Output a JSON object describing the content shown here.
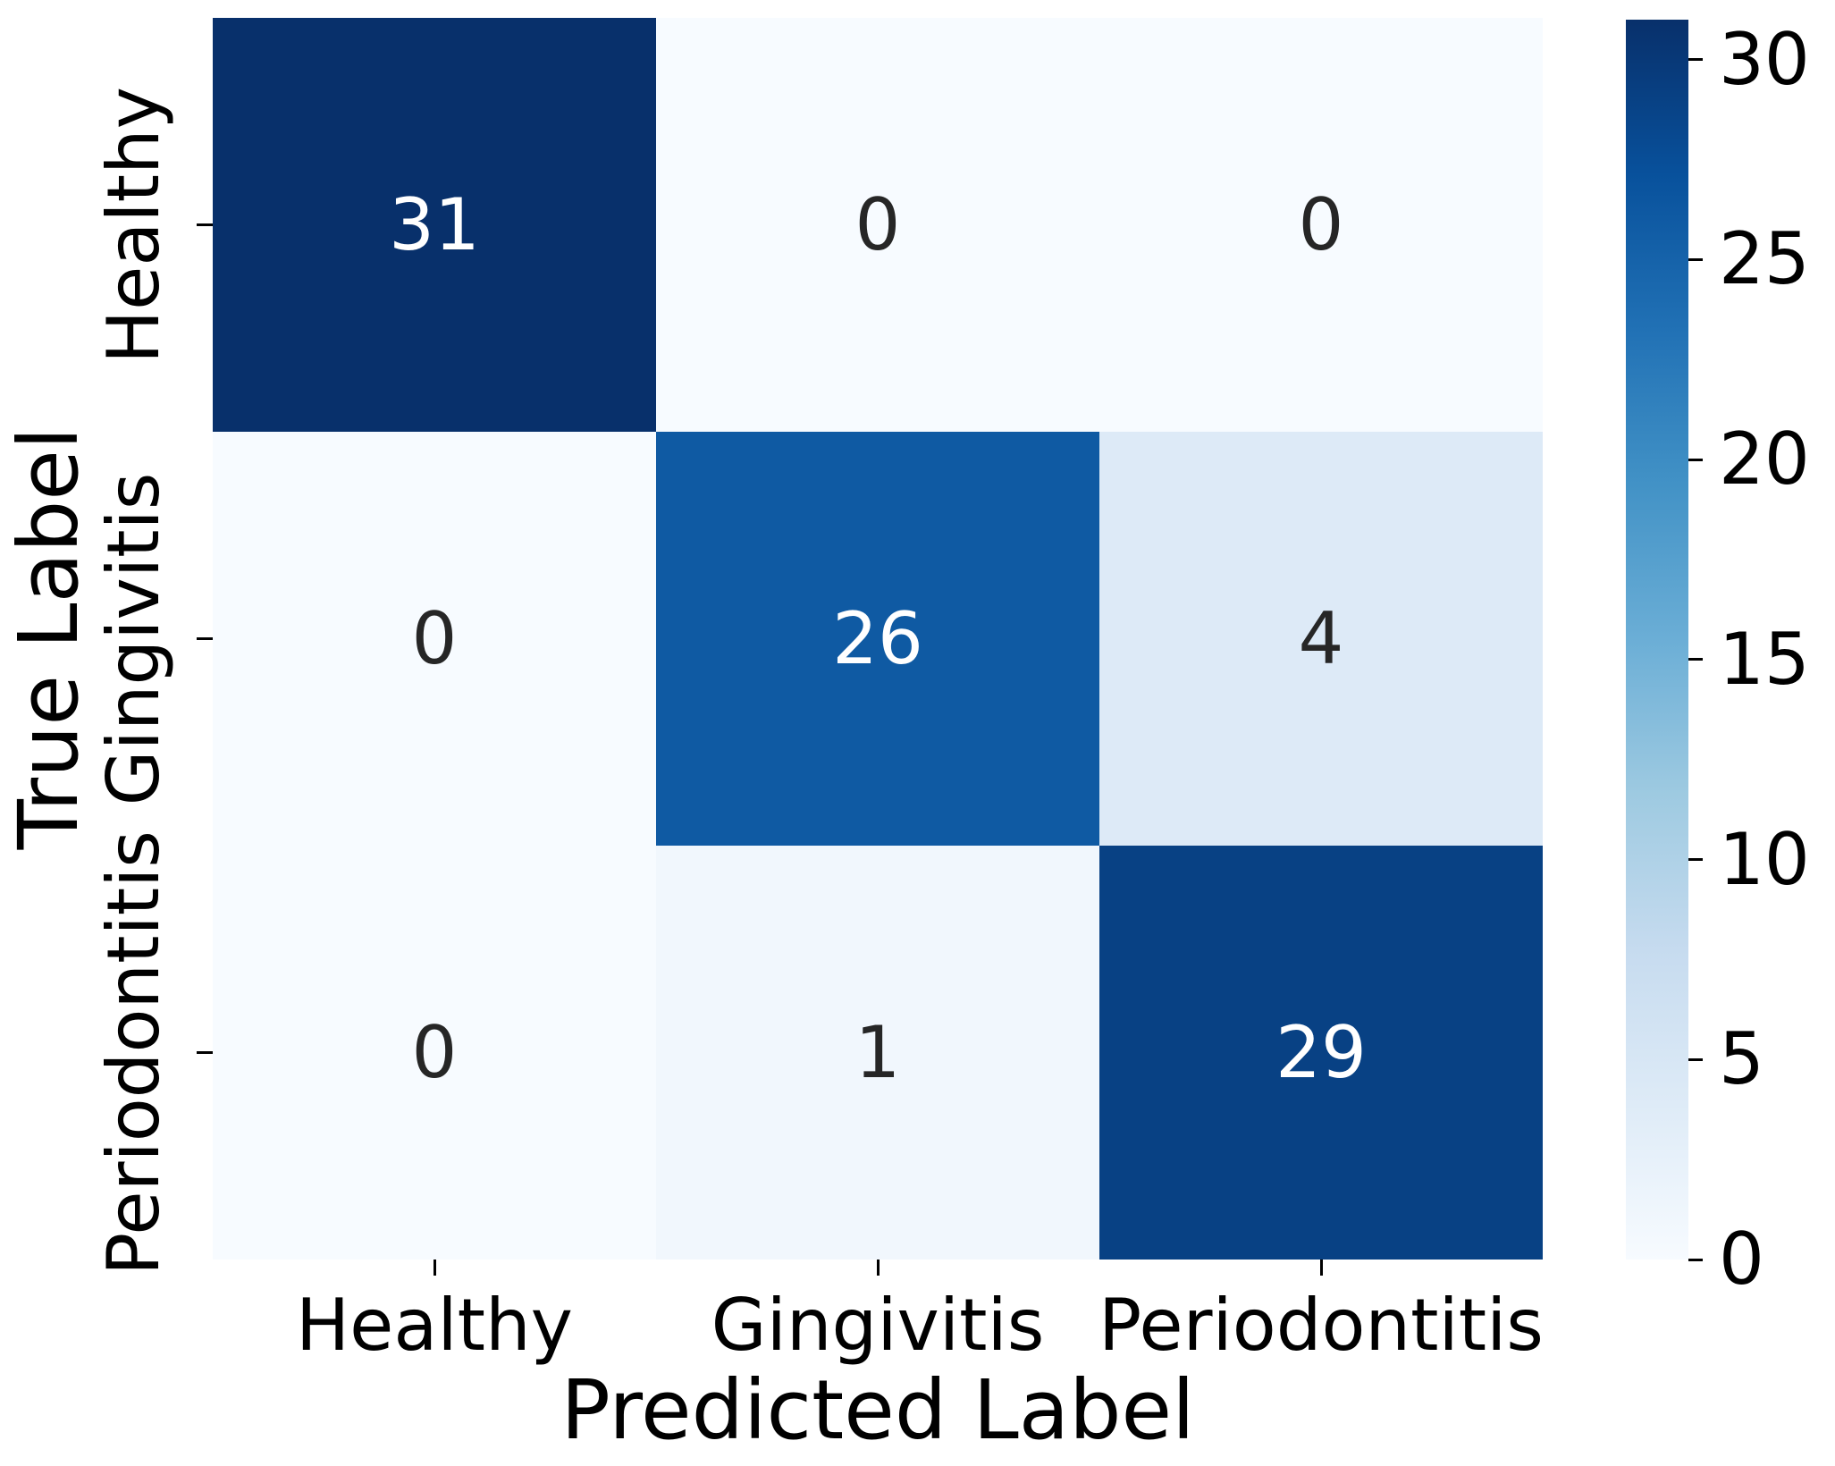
{
  "figure": {
    "background": "#ffffff"
  },
  "axes": {
    "xlabel": "Predicted Label",
    "ylabel": "True Label"
  },
  "chart_data": {
    "type": "heatmap",
    "title": "",
    "xlabel": "Predicted Label",
    "ylabel": "True Label",
    "x_categories": [
      "Healthy",
      "Gingivitis",
      "Periodontitis"
    ],
    "y_categories": [
      "Healthy",
      "Gingivitis",
      "Periodontitis"
    ],
    "matrix": [
      [
        31,
        0,
        0
      ],
      [
        0,
        26,
        4
      ],
      [
        0,
        1,
        29
      ]
    ],
    "vmin": 0,
    "vmax": 31,
    "colormap": "Blues",
    "legend_position": "right-colorbar",
    "grid": false,
    "colorbar_ticks": [
      0,
      5,
      10,
      15,
      20,
      25,
      30
    ],
    "cell_colors": [
      [
        "#08306b",
        "#f7fbff",
        "#f7fbff"
      ],
      [
        "#f7fbff",
        "#0f5aa3",
        "#ddeaf7"
      ],
      [
        "#f7fbff",
        "#f1f7fd",
        "#084184"
      ]
    ],
    "cell_text_colors": [
      [
        "#ffffff",
        "#262626",
        "#262626"
      ],
      [
        "#262626",
        "#ffffff",
        "#262626"
      ],
      [
        "#262626",
        "#262626",
        "#ffffff"
      ]
    ],
    "colorbar_gradient": [
      "#f7fbff",
      "#deebf7",
      "#c6dbef",
      "#9ecae1",
      "#6baed6",
      "#4292c6",
      "#2171b5",
      "#08519c",
      "#08306b"
    ],
    "tick_color": "#000000"
  }
}
